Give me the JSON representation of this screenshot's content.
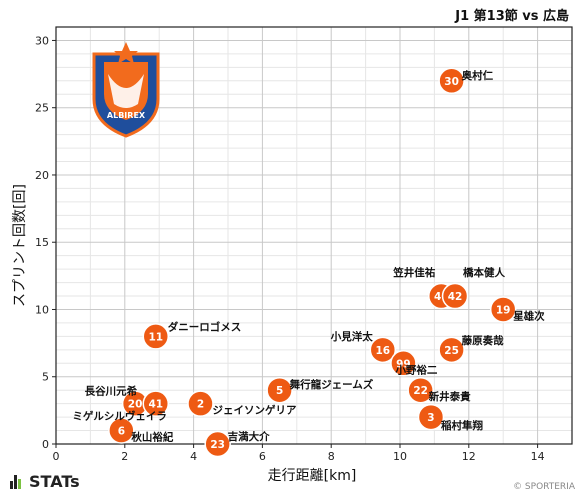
{
  "header": {
    "title": "J1 第13節 vs 広島"
  },
  "footer": {
    "brand": "STATs",
    "credit": "© SPORTERIA"
  },
  "logo": {
    "text": "ALBIREX",
    "colors": {
      "orange": "#f26b1d",
      "blue": "#1f4e9c"
    }
  },
  "colors": {
    "marker": "#ee5a13",
    "marker_border": "#ffffff",
    "grid": "#c8c8c8"
  },
  "chart_data": {
    "type": "scatter",
    "title": "",
    "xlabel": "走行距離[km]",
    "ylabel": "スプリント回数[回]",
    "xlim": [
      0,
      15
    ],
    "ylim": [
      0,
      31
    ],
    "xticks": [
      0,
      2,
      4,
      6,
      8,
      10,
      12,
      14
    ],
    "yticks": [
      0,
      5,
      10,
      15,
      20,
      25,
      30
    ],
    "grid": true,
    "points": [
      {
        "number": "30",
        "name": "奥村仁",
        "x": 11.5,
        "y": 27
      },
      {
        "number": "46",
        "name": "笠井佳祐",
        "x": 11.2,
        "y": 11
      },
      {
        "number": "42",
        "name": "橋本健人",
        "x": 11.6,
        "y": 11
      },
      {
        "number": "19",
        "name": "星雄次",
        "x": 13.0,
        "y": 10
      },
      {
        "number": "11",
        "name": "ダニーロゴメス",
        "x": 2.9,
        "y": 8
      },
      {
        "number": "16",
        "name": "小見洋太",
        "x": 9.5,
        "y": 7
      },
      {
        "number": "25",
        "name": "藤原奏哉",
        "x": 11.5,
        "y": 7
      },
      {
        "number": "99",
        "name": "小野裕二",
        "x": 10.1,
        "y": 6
      },
      {
        "number": "5",
        "name": "舞行龍ジェームズ",
        "x": 6.5,
        "y": 4
      },
      {
        "number": "22",
        "name": "新井泰貴",
        "x": 10.6,
        "y": 4
      },
      {
        "number": "20",
        "name": "長谷川元希",
        "x": 2.3,
        "y": 3
      },
      {
        "number": "41",
        "name": "",
        "x": 2.9,
        "y": 3
      },
      {
        "number": "2",
        "name": "ジェイソンゲリア",
        "x": 4.2,
        "y": 3
      },
      {
        "number": "3",
        "name": "稲村隼翔",
        "x": 10.9,
        "y": 2
      },
      {
        "number": "6",
        "name": "秋山裕紀",
        "x": 1.9,
        "y": 1
      },
      {
        "number": "",
        "name": "ミゲルシルヴェイラ",
        "x": 1.9,
        "y": 1
      },
      {
        "number": "23",
        "name": "吉満大介",
        "x": 4.7,
        "y": 0
      }
    ]
  }
}
